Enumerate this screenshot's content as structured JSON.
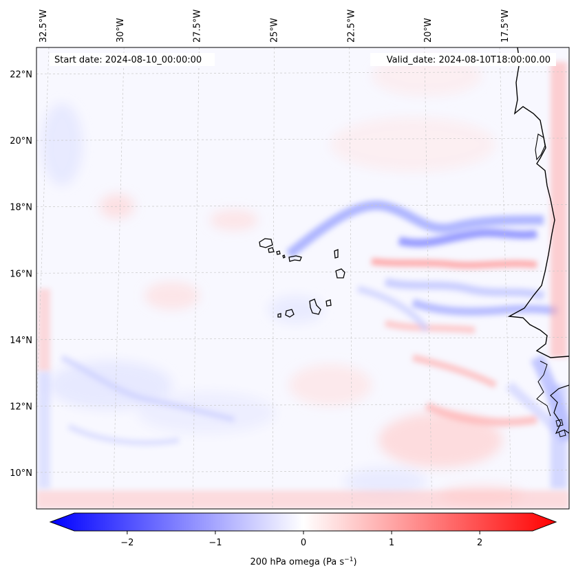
{
  "map": {
    "start_date_text": "Start date: 2024-08-10_00:00:00",
    "valid_date_text": "Valid_date: 2024-08-10T18:00:00.00",
    "lon_labels": [
      {
        "value": -32.5,
        "text": "32.5°W"
      },
      {
        "value": -30.0,
        "text": "30°W"
      },
      {
        "value": -27.5,
        "text": "27.5°W"
      },
      {
        "value": -25.0,
        "text": "25°W"
      },
      {
        "value": -22.5,
        "text": "22.5°W"
      },
      {
        "value": -20.0,
        "text": "20°W"
      },
      {
        "value": -17.5,
        "text": "17.5°W"
      }
    ],
    "lat_labels": [
      {
        "value": 22,
        "text": "22°N"
      },
      {
        "value": 20,
        "text": "20°N"
      },
      {
        "value": 18,
        "text": "18°N"
      },
      {
        "value": 16,
        "text": "16°N"
      },
      {
        "value": 14,
        "text": "14°N"
      },
      {
        "value": 12,
        "text": "12°N"
      },
      {
        "value": 10,
        "text": "10°N"
      }
    ],
    "lon_range": [
      -32.7,
      -15.4
    ],
    "lat_range": [
      8.9,
      22.8
    ],
    "gridlines": true,
    "coastline_color": "#000000"
  },
  "colorbar": {
    "label_prefix": "200 hPa omega (Pa s",
    "label_sup": "−1",
    "label_suffix": ")",
    "range": [
      -2.6,
      2.6
    ],
    "ticks": [
      {
        "value": -2,
        "text": "−2"
      },
      {
        "value": -1,
        "text": "−1"
      },
      {
        "value": 0,
        "text": "0"
      },
      {
        "value": 1,
        "text": "1"
      },
      {
        "value": 2,
        "text": "2"
      }
    ],
    "colormap": "bwr",
    "color_min": "#0000ff",
    "color_mid": "#ffffff",
    "color_max": "#ff0000",
    "extend": "both"
  }
}
